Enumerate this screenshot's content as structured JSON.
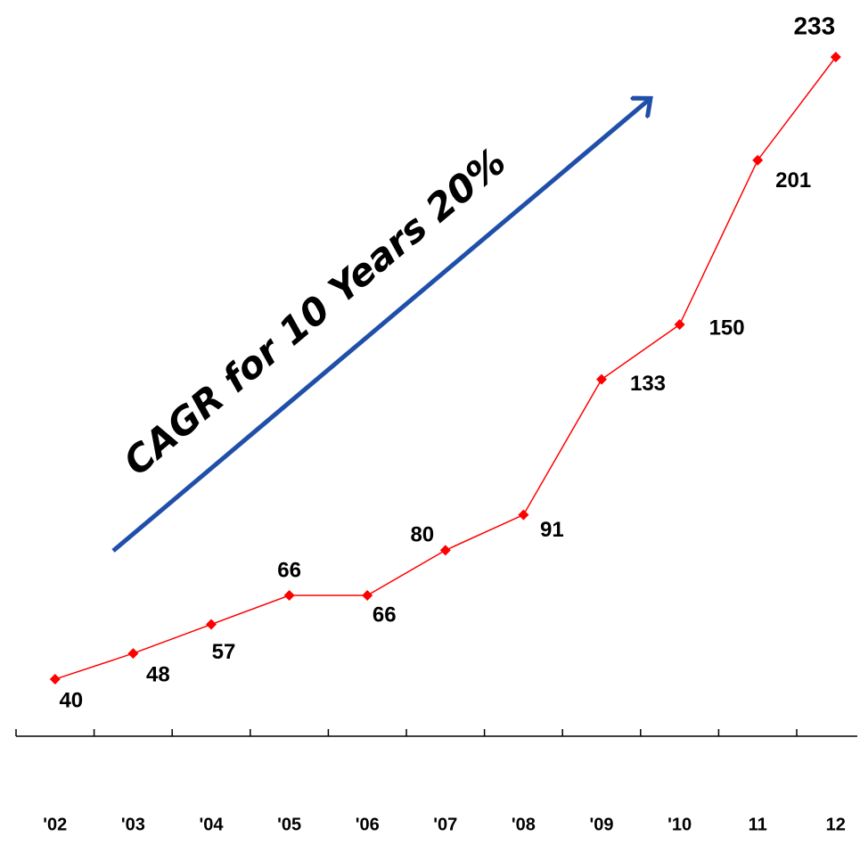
{
  "chart_data": {
    "type": "line",
    "annotation": "CAGR for 10 Years 20%",
    "categories": [
      "'02",
      "'03",
      "'04",
      "'05",
      "'06",
      "'07",
      "'08",
      "'09",
      "'10",
      "11",
      "12"
    ],
    "values": [
      40,
      48,
      57,
      66,
      66,
      80,
      91,
      133,
      150,
      201,
      233
    ],
    "color": "#ff0000",
    "arrow_color": "#1f4fa8",
    "ylim": [
      0,
      250
    ]
  }
}
